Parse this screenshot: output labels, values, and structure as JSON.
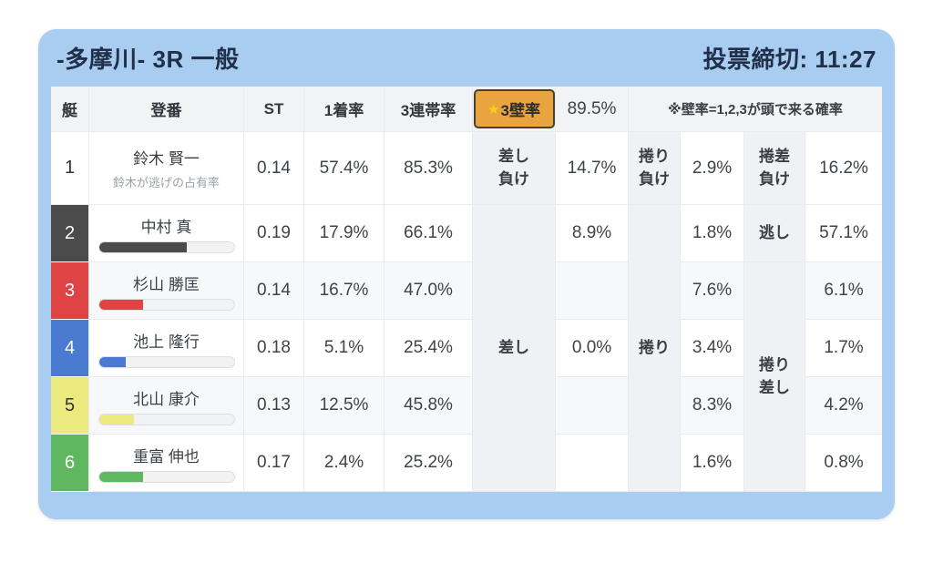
{
  "colors": {
    "card": "#a9cdf0",
    "accent_orange": "#e9a440",
    "star_yellow": "#f5d01f",
    "boat1": "#ffffff",
    "boat2": "#4b4b4b",
    "boat3": "#df4343",
    "boat4": "#4b7bd0",
    "boat5": "#ece97e",
    "boat6": "#5fb75f"
  },
  "header": {
    "title": "-多摩川- 3R 一般",
    "deadline": "投票締切: 11:27"
  },
  "table": {
    "col_boat": "艇",
    "col_racer": "登番",
    "col_st": "ST",
    "col_win1": "1着率",
    "col_top3": "3連帯率",
    "wall_star": "★",
    "wall_label": "3壁率",
    "wall_value": "89.5%",
    "note": "※壁率=1,2,3が頭で来る確率",
    "span_sashi": "差し",
    "span_makuri": "捲り",
    "span_makurizashi": "捲り\n差し",
    "rows": [
      {
        "num": "1",
        "name": "鈴木 賢一",
        "sub": "鈴木が逃げの占有率",
        "st": "0.14",
        "win1": "57.4%",
        "top3": "85.3%",
        "l1": "差し\n負け",
        "v1": "14.7%",
        "l2": "捲り\n負け",
        "v2": "2.9%",
        "l3": "捲差\n負け",
        "v3": "16.2%"
      },
      {
        "num": "2",
        "name": "中村 真",
        "bar": 65,
        "st": "0.19",
        "win1": "17.9%",
        "top3": "66.1%",
        "v1": "8.9%",
        "v2": "1.8%",
        "l3": "逃し",
        "v3": "57.1%"
      },
      {
        "num": "3",
        "name": "杉山 勝匡",
        "bar": 33,
        "st": "0.14",
        "win1": "16.7%",
        "top3": "47.0%",
        "v1": "",
        "v2": "7.6%",
        "v3": "6.1%"
      },
      {
        "num": "4",
        "name": "池上 隆行",
        "bar": 20,
        "st": "0.18",
        "win1": "5.1%",
        "top3": "25.4%",
        "v1": "0.0%",
        "v2": "3.4%",
        "v3": "1.7%"
      },
      {
        "num": "5",
        "name": "北山 康介",
        "bar": 26,
        "st": "0.13",
        "win1": "12.5%",
        "top3": "45.8%",
        "v1": "",
        "v2": "8.3%",
        "v3": "4.2%"
      },
      {
        "num": "6",
        "name": "重富 伸也",
        "bar": 33,
        "st": "0.17",
        "win1": "2.4%",
        "top3": "25.2%",
        "v1": "",
        "v2": "1.6%",
        "v3": "0.8%"
      }
    ]
  }
}
